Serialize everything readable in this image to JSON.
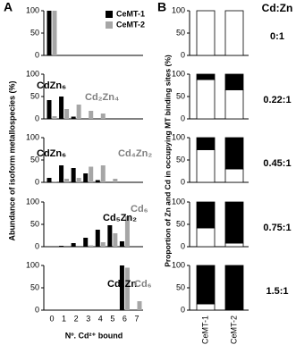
{
  "chart_data": [
    {
      "type": "bar",
      "panel_label": "A",
      "ylabel": "Abundance of isoform metallospecies (%)",
      "ylim": [
        0,
        100
      ],
      "yticks": [
        0,
        50,
        100
      ],
      "series": [
        {
          "name": "CeMT-1",
          "color": "#000000",
          "values": [
            100,
            0,
            0,
            0,
            0,
            0,
            0,
            0
          ]
        },
        {
          "name": "CeMT-2",
          "color": "#a6a6a6",
          "values": [
            100,
            0,
            0,
            0,
            0,
            0,
            0,
            0
          ]
        }
      ]
    },
    {
      "type": "bar",
      "ylim": [
        0,
        100
      ],
      "yticks": [
        0,
        50,
        100
      ],
      "annotations": [
        {
          "text": "CdZn₆",
          "color": "#000000"
        },
        {
          "text": "Cd₂Zn₄",
          "color": "#808080"
        }
      ],
      "series": [
        {
          "color": "#000000",
          "values": [
            42,
            50,
            5,
            0,
            0,
            0,
            0,
            0
          ]
        },
        {
          "color": "#a6a6a6",
          "values": [
            6,
            22,
            32,
            18,
            12,
            0,
            0,
            0
          ]
        }
      ]
    },
    {
      "type": "bar",
      "ylim": [
        0,
        100
      ],
      "yticks": [
        0,
        50,
        100
      ],
      "annotations": [
        {
          "text": "CdZn₆",
          "color": "#000000"
        },
        {
          "text": "Cd₄Zn₂",
          "color": "#808080"
        }
      ],
      "series": [
        {
          "color": "#000000",
          "values": [
            10,
            38,
            32,
            20,
            5,
            0,
            0,
            0
          ]
        },
        {
          "color": "#a6a6a6",
          "values": [
            2,
            8,
            10,
            35,
            38,
            8,
            0,
            0
          ]
        }
      ]
    },
    {
      "type": "bar",
      "ylim": [
        0,
        100
      ],
      "yticks": [
        0,
        50,
        100
      ],
      "annotations": [
        {
          "text": "Cd₅Zn₂",
          "color": "#000000"
        },
        {
          "text": "Cd₆",
          "color": "#808080"
        }
      ],
      "series": [
        {
          "color": "#000000",
          "values": [
            0,
            2,
            8,
            20,
            38,
            48,
            12,
            0
          ]
        },
        {
          "color": "#a6a6a6",
          "values": [
            0,
            0,
            0,
            3,
            10,
            30,
            68,
            0
          ]
        }
      ]
    },
    {
      "type": "bar",
      "ylim": [
        0,
        100
      ],
      "yticks": [
        0,
        50,
        100
      ],
      "xlabel": "Nº. Cd²⁺ bound",
      "categories": [
        0,
        1,
        2,
        3,
        4,
        5,
        6,
        7
      ],
      "annotations": [
        {
          "text": "Cd₆Zn",
          "color": "#000000"
        },
        {
          "text": "Cd₆",
          "color": "#808080"
        }
      ],
      "series": [
        {
          "color": "#000000",
          "values": [
            0,
            0,
            0,
            0,
            0,
            0,
            100,
            0
          ]
        },
        {
          "color": "#a6a6a6",
          "values": [
            0,
            0,
            0,
            0,
            0,
            0,
            95,
            20
          ]
        }
      ]
    },
    {
      "type": "stacked_bar",
      "panel_label": "B",
      "header": "Cd:Zn",
      "title": "0:1",
      "ylabel": "Proportion of Zn and Cd in occupying MT binding sites (%)",
      "ylim": [
        0,
        100
      ],
      "yticks": [
        0,
        50,
        100
      ],
      "series": [
        {
          "color": "#ffffff",
          "values": [
            100,
            100
          ]
        },
        {
          "color": "#000000",
          "values": [
            0,
            0
          ]
        }
      ]
    },
    {
      "type": "stacked_bar",
      "title": "0.22:1",
      "ylim": [
        0,
        100
      ],
      "yticks": [
        0,
        50,
        100
      ],
      "series": [
        {
          "color": "#ffffff",
          "values": [
            88,
            65
          ]
        },
        {
          "color": "#000000",
          "values": [
            12,
            35
          ]
        }
      ]
    },
    {
      "type": "stacked_bar",
      "title": "0.45:1",
      "ylim": [
        0,
        100
      ],
      "yticks": [
        0,
        50,
        100
      ],
      "series": [
        {
          "color": "#ffffff",
          "values": [
            73,
            30
          ]
        },
        {
          "color": "#000000",
          "values": [
            27,
            70
          ]
        }
      ]
    },
    {
      "type": "stacked_bar",
      "title": "0.75:1",
      "ylim": [
        0,
        100
      ],
      "yticks": [
        0,
        50,
        100
      ],
      "series": [
        {
          "color": "#ffffff",
          "values": [
            42,
            8
          ]
        },
        {
          "color": "#000000",
          "values": [
            58,
            92
          ]
        }
      ]
    },
    {
      "type": "stacked_bar",
      "title": "1.5:1",
      "ylim": [
        0,
        100
      ],
      "yticks": [
        0,
        50,
        100
      ],
      "categories": [
        "CeMT-1",
        "CeMT-2"
      ],
      "series": [
        {
          "color": "#ffffff",
          "values": [
            14,
            0
          ]
        },
        {
          "color": "#000000",
          "values": [
            86,
            100
          ]
        }
      ]
    }
  ]
}
